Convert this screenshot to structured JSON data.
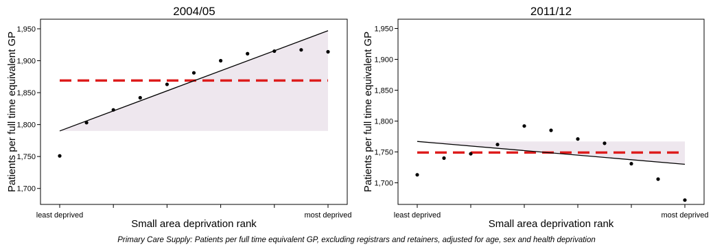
{
  "caption": "Primary Care Supply: Patients per full time equivalent GP, excluding registrars and retainers, adjusted for age, sex and health deprivation",
  "chart_data": [
    {
      "type": "scatter",
      "title": "2004/05",
      "xlabel": "Small area deprivation rank",
      "ylabel": "Patients per full time equivalent GP",
      "x_tick_labels": [
        "least deprived",
        "",
        "",
        "",
        "",
        "most deprived"
      ],
      "ylim": [
        1675,
        1965
      ],
      "yticks": [
        1700,
        1750,
        1800,
        1850,
        1900,
        1950
      ],
      "ytick_labels": [
        "1,700",
        "1,750",
        "1,800",
        "1,850",
        "1,900",
        "1,950"
      ],
      "points": {
        "x": [
          1,
          2,
          3,
          4,
          5,
          6,
          7,
          8,
          9,
          10,
          11
        ],
        "y": [
          1751,
          1803,
          1823,
          1842,
          1863,
          1881,
          1900,
          1911,
          1915,
          1917,
          1914
        ]
      },
      "trend_line": {
        "y_start": 1790,
        "y_end": 1947
      },
      "mean_line": {
        "value": 1869,
        "color": "#dd1c1c",
        "style": "dashed"
      },
      "shade_color": "#eee7ee"
    },
    {
      "type": "scatter",
      "title": "2011/12",
      "xlabel": "Small area deprivation rank",
      "ylabel": "Patients per full time equivalent GP",
      "x_tick_labels": [
        "least deprived",
        "",
        "",
        "",
        "",
        "most deprived"
      ],
      "ylim": [
        1665,
        1965
      ],
      "yticks": [
        1700,
        1750,
        1800,
        1850,
        1900,
        1950
      ],
      "ytick_labels": [
        "1,700",
        "1,750",
        "1,800",
        "1,850",
        "1,900",
        "1,950"
      ],
      "points": {
        "x": [
          1,
          2,
          3,
          4,
          5,
          6,
          7,
          8,
          9,
          10,
          11
        ],
        "y": [
          1713,
          1740,
          1747,
          1762,
          1792,
          1785,
          1771,
          1764,
          1731,
          1706,
          1672
        ]
      },
      "trend_line": {
        "y_start": 1767,
        "y_end": 1730
      },
      "mean_line": {
        "value": 1749,
        "color": "#dd1c1c",
        "style": "dashed"
      },
      "shade_color": "#eee7ee"
    }
  ]
}
